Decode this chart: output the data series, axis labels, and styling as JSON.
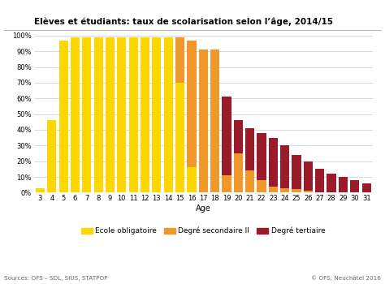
{
  "title": "Elèves et étudiants: taux de scolarisation selon l’âge, 2014/15",
  "xlabel": "Age",
  "ages": [
    3,
    4,
    5,
    6,
    7,
    8,
    9,
    10,
    11,
    12,
    13,
    14,
    15,
    16,
    17,
    18,
    19,
    20,
    21,
    22,
    23,
    24,
    25,
    26,
    27,
    28,
    29,
    30,
    31
  ],
  "ecole_obligatoire": [
    3,
    46,
    97,
    99,
    99,
    99,
    99,
    99,
    99,
    99,
    99,
    99,
    70,
    16,
    0,
    0,
    0,
    0,
    0,
    0,
    0,
    0,
    0,
    0,
    0,
    0,
    0,
    0,
    0
  ],
  "secondaire_II": [
    0,
    0,
    0,
    0,
    0,
    0,
    0,
    0,
    0,
    0,
    0,
    0,
    29,
    81,
    91,
    91,
    11,
    25,
    14,
    8,
    4,
    3,
    2,
    1,
    0,
    0,
    0,
    0,
    0
  ],
  "tertiaire": [
    0,
    0,
    0,
    0,
    0,
    0,
    0,
    0,
    0,
    0,
    0,
    0,
    0,
    0,
    0,
    0,
    50,
    21,
    27,
    30,
    31,
    27,
    22,
    19,
    15,
    12,
    10,
    8,
    6
  ],
  "color_obligatoire": "#FFD700",
  "color_secondaire": "#F0982A",
  "color_tertiaire": "#9B1B2A",
  "legend_labels": [
    "Ecole obligatoire",
    "Degré secondaire II",
    "Degré tertiaire"
  ],
  "footer_left": "Sources: OFS – SDL, SIUS, STATPOP",
  "footer_right": "© OFS, Neuchâtel 2016",
  "ylim": [
    0,
    104
  ],
  "yticks": [
    0,
    10,
    20,
    30,
    40,
    50,
    60,
    70,
    80,
    90,
    100
  ],
  "background_color": "#FFFFFF",
  "grid_color": "#CCCCCC",
  "title_fontsize": 7.5,
  "tick_fontsize": 6,
  "xlabel_fontsize": 7,
  "legend_fontsize": 6.5
}
